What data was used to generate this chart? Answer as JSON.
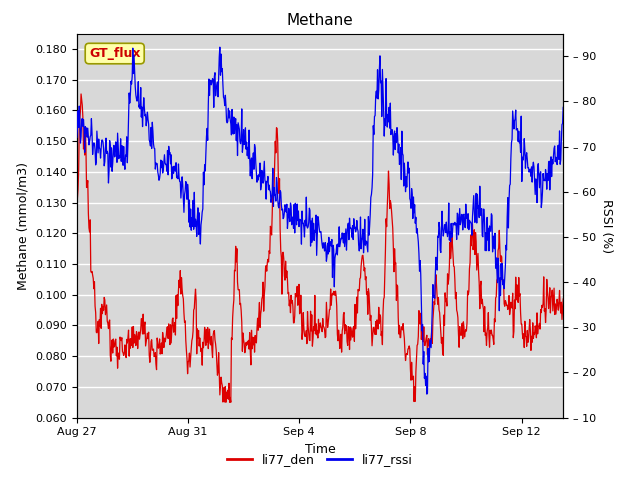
{
  "title": "Methane",
  "ylabel_left": "Methane (mmol/m3)",
  "ylabel_right": "RSSI (%)",
  "xlabel": "Time",
  "ylim_left": [
    0.06,
    0.185
  ],
  "ylim_right": [
    10,
    95
  ],
  "yticks_left": [
    0.06,
    0.07,
    0.08,
    0.09,
    0.1,
    0.11,
    0.12,
    0.13,
    0.14,
    0.15,
    0.16,
    0.17,
    0.18
  ],
  "yticks_right": [
    10,
    20,
    30,
    40,
    50,
    60,
    70,
    80,
    90
  ],
  "xtick_labels": [
    "Aug 27",
    "Aug 31",
    "Sep 4",
    "Sep 8",
    "Sep 12"
  ],
  "xtick_positions": [
    0,
    4,
    8,
    12,
    16
  ],
  "xlim": [
    0,
    17.5
  ],
  "background_plot": "#d8d8d8",
  "background_fig": "#ffffff",
  "grid_color": "#ffffff",
  "line_red": "#dd0000",
  "line_blue": "#0000ee",
  "legend_label_red": "li77_den",
  "legend_label_blue": "li77_rssi",
  "watermark_text": "GT_flux",
  "watermark_bg": "#ffffaa",
  "watermark_border": "#999900",
  "watermark_text_color": "#cc0000",
  "title_fontsize": 11,
  "axis_fontsize": 9,
  "tick_fontsize": 8,
  "legend_fontsize": 9
}
